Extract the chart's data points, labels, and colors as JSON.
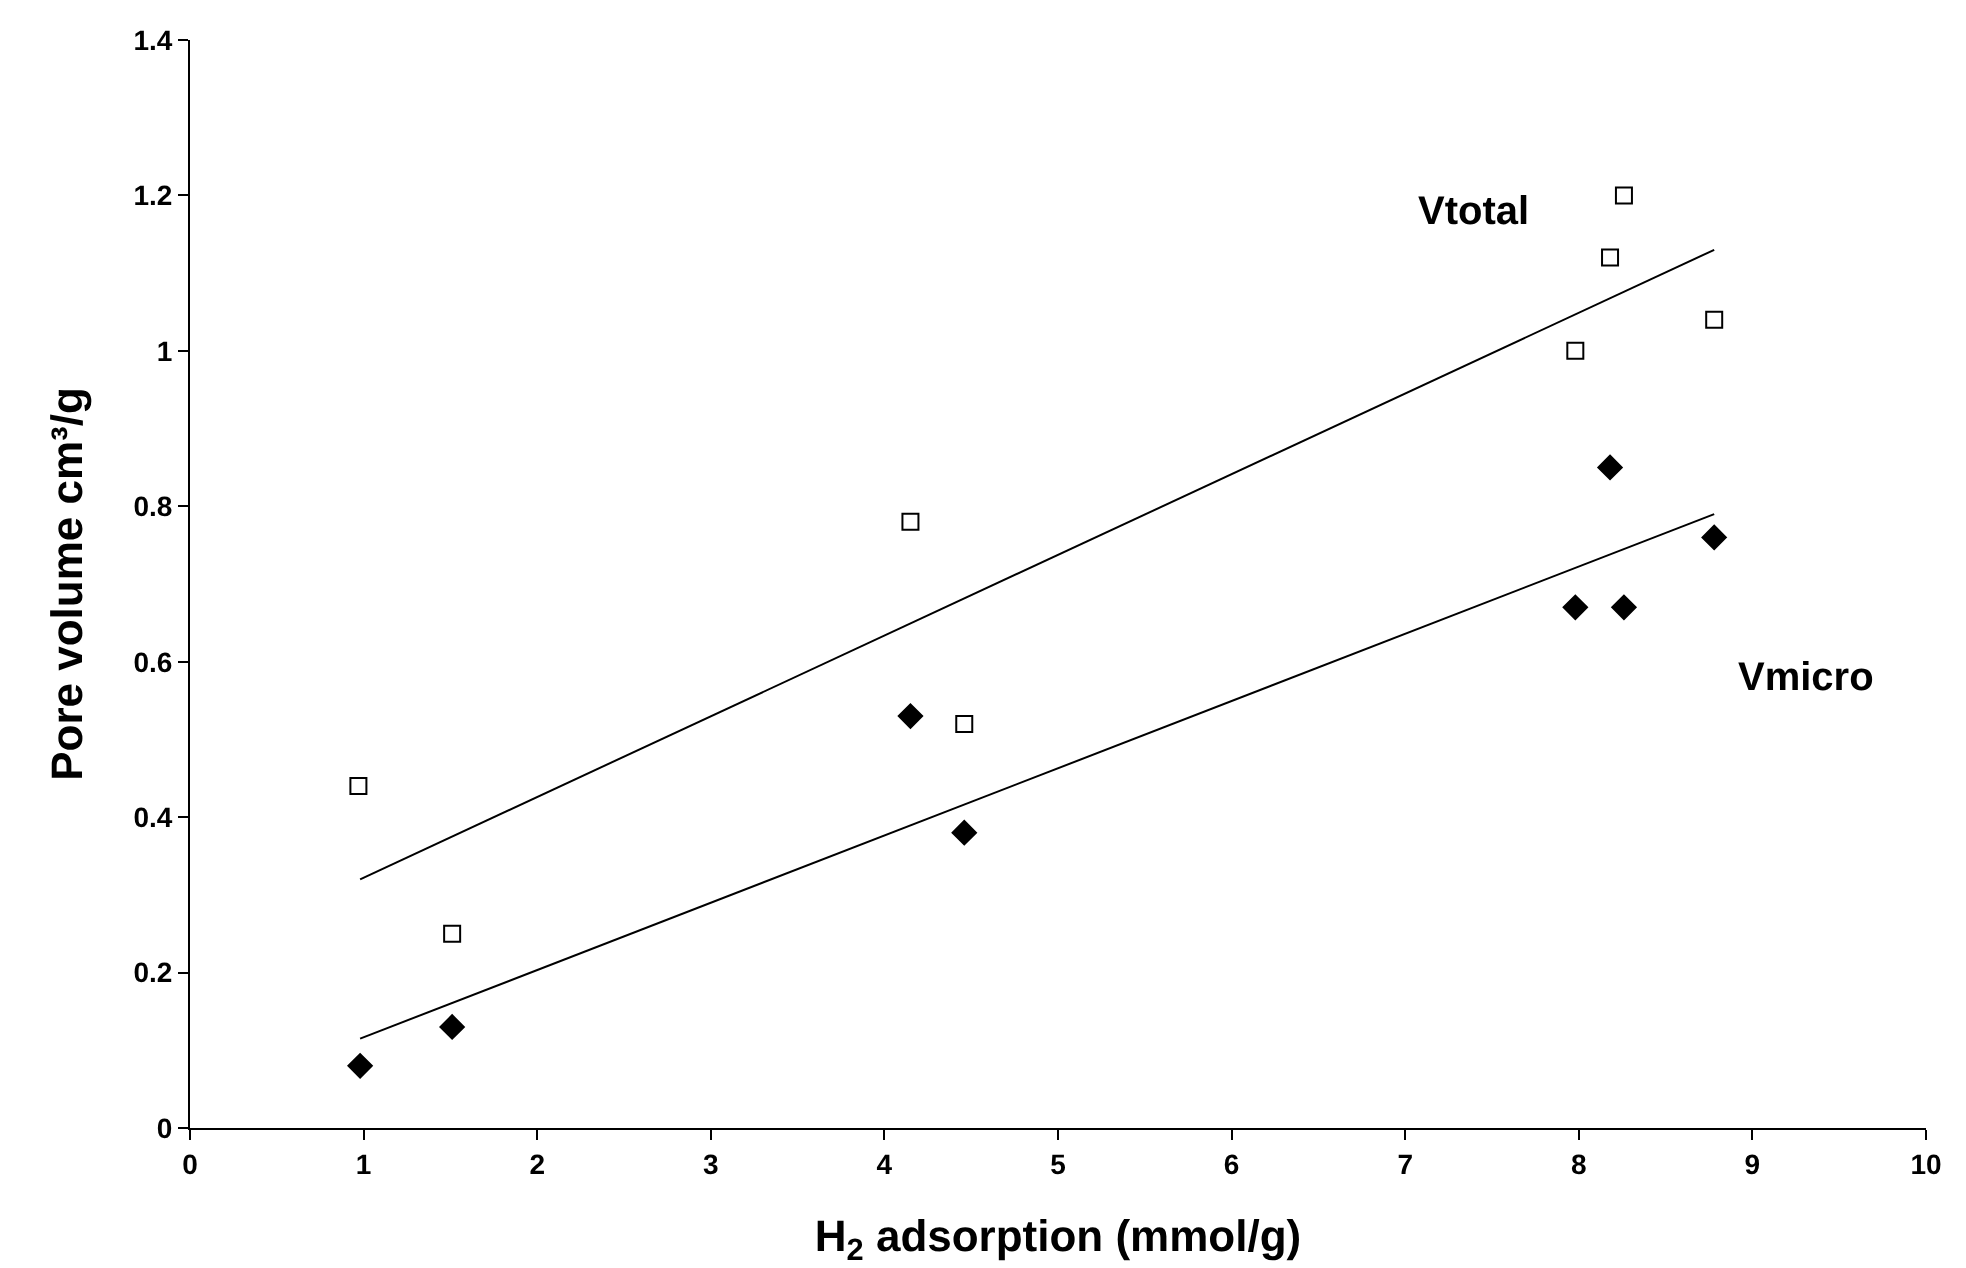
{
  "chart_data": {
    "type": "scatter",
    "xlabel": "H$_{2}$ adsorption (mmol/g)",
    "ylabel": "Pore volume cm³/g",
    "xlim": [
      0,
      10
    ],
    "xticks": [
      0,
      1,
      2,
      3,
      4,
      5,
      6,
      7,
      8,
      9,
      10
    ],
    "ylim": [
      0,
      1.4
    ],
    "yticks": [
      0,
      0.2,
      0.4,
      0.6,
      0.8,
      1,
      1.2,
      1.4
    ],
    "grid": false,
    "legend": false,
    "series": [
      {
        "name": "Vtotal",
        "color": "#000000",
        "marker": "square",
        "x": [
          0.97,
          1.51,
          4.15,
          4.46,
          7.98,
          8.18,
          8.26,
          8.78
        ],
        "values": [
          0.44,
          0.25,
          0.78,
          0.52,
          1.0,
          1.12,
          1.2,
          1.04
        ]
      },
      {
        "name": "Vmicro",
        "color": "#000000",
        "marker": "diamond",
        "x": [
          0.98,
          1.51,
          4.15,
          4.46,
          7.98,
          8.18,
          8.26,
          8.78
        ],
        "values": [
          0.08,
          0.13,
          0.53,
          0.38,
          0.67,
          0.85,
          0.67,
          0.76
        ]
      },
      {
        "type": "line",
        "color": "#000000",
        "marker": "none",
        "line_style": "solid",
        "x": [
          0.98,
          8.78
        ],
        "values": [
          0.32,
          1.13
        ]
      },
      {
        "type": "line",
        "color": "#000000",
        "marker": "none",
        "line_style": "solid",
        "x": [
          0.98,
          8.78
        ],
        "values": [
          0.115,
          0.79
        ]
      }
    ]
  }
}
